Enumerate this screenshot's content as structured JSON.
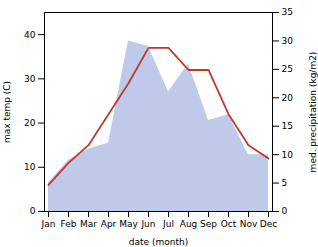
{
  "chart_data": {
    "type": "line",
    "xlabel": "date (month)",
    "ylabel": "max temp (C)",
    "y2label": "med. precipitation (kg/m2)",
    "categories": [
      "Jan",
      "Feb",
      "Mar",
      "Apr",
      "May",
      "Jun",
      "Jul",
      "Aug",
      "Sep",
      "Oct",
      "Nov",
      "Dec"
    ],
    "series": [
      {
        "type": "area",
        "axis": "y2",
        "color": "#b8c4e8",
        "values": [
          5,
          9,
          11,
          12,
          30,
          29,
          21,
          26,
          16,
          17,
          10,
          10
        ]
      },
      {
        "type": "line",
        "color": "#c0392b",
        "values": [
          6,
          11,
          15,
          22,
          29,
          37,
          37,
          32,
          32,
          22,
          15,
          12
        ]
      }
    ],
    "ylim": [
      0,
      45
    ],
    "yticks": [
      0,
      10,
      20,
      30,
      40
    ],
    "y2lim": [
      0,
      35
    ],
    "y2ticks": [
      0,
      5,
      10,
      15,
      20,
      25,
      30,
      35
    ],
    "grid": false
  }
}
